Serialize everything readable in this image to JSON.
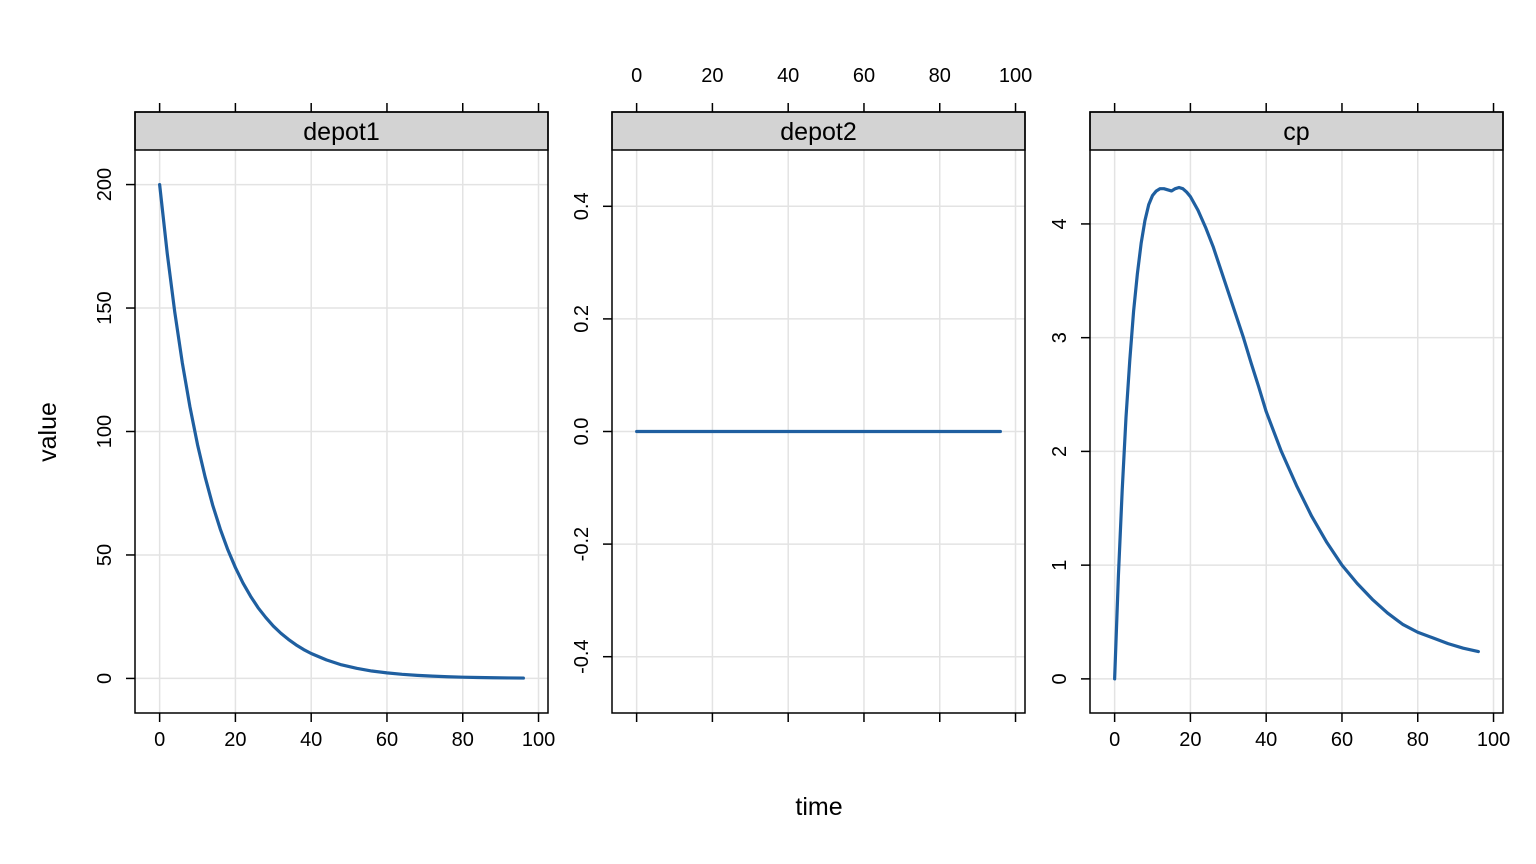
{
  "chart_data": {
    "type": "line",
    "layout": "lattice-1x3",
    "xlabel": "time",
    "ylabel": "value",
    "line_color": "#1f5fa0",
    "strip_color": "#d3d3d3",
    "grid_color": "#e3e3e3",
    "grid": true,
    "xlim": [
      -6.5,
      102.5
    ],
    "x_ticks": [
      0,
      20,
      40,
      60,
      80,
      100
    ],
    "panels": [
      {
        "name": "depot1",
        "ylim": [
          -14,
          214
        ],
        "y_ticks": [
          0,
          50,
          100,
          150,
          200
        ],
        "y_tick_labels": [
          "0",
          "50",
          "100",
          "150",
          "200"
        ],
        "x_tick_labels_side": "bottom",
        "series": {
          "x": [
            0,
            2,
            4,
            6,
            8,
            10,
            12,
            14,
            16,
            18,
            20,
            22,
            24,
            26,
            28,
            30,
            32,
            34,
            36,
            38,
            40,
            44,
            48,
            52,
            56,
            60,
            64,
            68,
            72,
            76,
            80,
            84,
            88,
            92,
            96
          ],
          "y": [
            200,
            172.2,
            148.3,
            127.7,
            110,
            94.7,
            81.6,
            70.2,
            60.5,
            52.1,
            44.9,
            38.6,
            33.3,
            28.6,
            24.7,
            21.2,
            18.3,
            15.8,
            13.6,
            11.7,
            10.1,
            7.5,
            5.5,
            4.1,
            3.0,
            2.25,
            1.67,
            1.24,
            0.92,
            0.68,
            0.5,
            0.37,
            0.28,
            0.2,
            0.15
          ]
        }
      },
      {
        "name": "depot2",
        "ylim": [
          -0.5,
          0.5
        ],
        "y_ticks": [
          -0.4,
          -0.2,
          0,
          0.2,
          0.4
        ],
        "y_tick_labels": [
          "-0.4",
          "-0.2",
          "0.0",
          "0.2",
          "0.4"
        ],
        "x_tick_labels_side": "top",
        "series": {
          "x": [
            0,
            96
          ],
          "y": [
            0,
            0
          ]
        }
      },
      {
        "name": "cp",
        "ylim": [
          -0.3,
          4.65
        ],
        "y_ticks": [
          0,
          1,
          2,
          3,
          4
        ],
        "y_tick_labels": [
          "0",
          "1",
          "2",
          "3",
          "4"
        ],
        "x_tick_labels_side": "bottom",
        "series": {
          "x": [
            0,
            1,
            2,
            3,
            4,
            5,
            6,
            7,
            8,
            9,
            10,
            11,
            12,
            13,
            14,
            15,
            16,
            17,
            18,
            19,
            20,
            22,
            24,
            26,
            28,
            30,
            32,
            34,
            36,
            38,
            40,
            44,
            48,
            52,
            56,
            60,
            64,
            68,
            72,
            76,
            80,
            84,
            88,
            92,
            96
          ],
          "y": [
            0,
            0.91,
            1.66,
            2.3,
            2.8,
            3.23,
            3.56,
            3.83,
            4.03,
            4.17,
            4.25,
            4.29,
            4.31,
            4.31,
            4.3,
            4.29,
            4.31,
            4.32,
            4.31,
            4.28,
            4.24,
            4.12,
            3.97,
            3.8,
            3.6,
            3.4,
            3.2,
            3.0,
            2.78,
            2.57,
            2.35,
            2.0,
            1.7,
            1.43,
            1.2,
            1.0,
            0.84,
            0.7,
            0.58,
            0.48,
            0.41,
            0.36,
            0.31,
            0.27,
            0.24
          ]
        }
      }
    ]
  }
}
